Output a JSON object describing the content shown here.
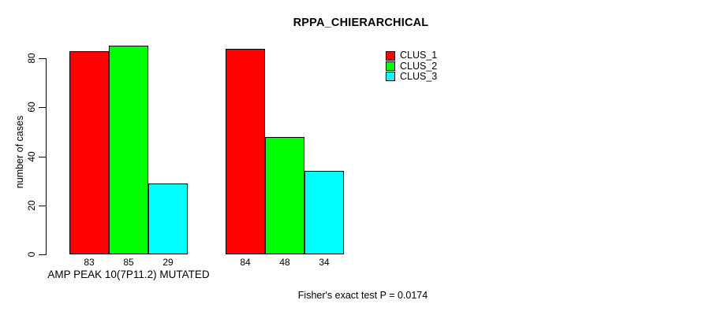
{
  "chart_data": {
    "type": "bar",
    "title": "RPPA_CHIERARCHICAL",
    "ylabel": "number of cases",
    "xlabel": "AMP PEAK 10(7P11.2) MUTATED",
    "ylim": [
      0,
      85
    ],
    "yticks": [
      0,
      20,
      40,
      60,
      80
    ],
    "grid": false,
    "legend_position": "top-right",
    "categories": [
      "AMP PEAK 10(7P11.2) MUTATED",
      ""
    ],
    "series": [
      {
        "name": "CLUS_1",
        "color": "#ff0000",
        "values": [
          83,
          84
        ]
      },
      {
        "name": "CLUS_2",
        "color": "#00ff00",
        "values": [
          85,
          48
        ]
      },
      {
        "name": "CLUS_3",
        "color": "#00ffff",
        "values": [
          29,
          34
        ]
      }
    ],
    "bar_value_labels": [
      [
        83,
        85,
        29
      ],
      [
        84,
        48,
        34
      ]
    ],
    "annotation": "Fisher's exact test P = 0.0174"
  },
  "colors": {
    "background": "#ffffff",
    "axis": "#000000",
    "text": "#000000"
  }
}
